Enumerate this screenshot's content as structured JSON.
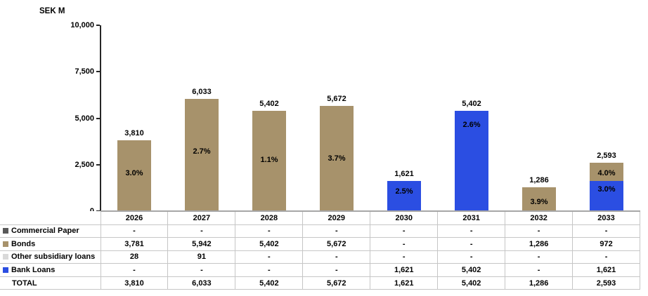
{
  "chart": {
    "y_axis_title": "SEK M",
    "ylim": [
      0,
      10000
    ],
    "y_ticks": [
      {
        "label": "10,000",
        "value": 10000
      },
      {
        "label": "7,500",
        "value": 7500
      },
      {
        "label": "5,000",
        "value": 5000
      },
      {
        "label": "2,500",
        "value": 2500
      },
      {
        "label": "0",
        "value": 0
      }
    ]
  },
  "colors": {
    "commercial_paper": "#595959",
    "bonds": "#A7926B",
    "other_subsidiary_loans": "#D9D9D9",
    "bank_loans": "#2B4EE2",
    "axis": "#262626",
    "table_border": "#C6C6C6",
    "baseline": "#A6A6A6"
  },
  "chart_data": {
    "type": "bar",
    "stacked": true,
    "title": "",
    "xlabel": "",
    "ylabel": "SEK M",
    "ylim": [
      0,
      10000
    ],
    "grid": false,
    "legend_position": "table-left",
    "categories": [
      "2026",
      "2027",
      "2028",
      "2029",
      "2030",
      "2031",
      "2032",
      "2033"
    ],
    "series": [
      {
        "name": "Commercial Paper",
        "color": "#595959",
        "values": [
          0,
          0,
          0,
          0,
          0,
          0,
          0,
          0
        ],
        "display": [
          "-",
          "-",
          "-",
          "-",
          "-",
          "-",
          "-",
          "-"
        ]
      },
      {
        "name": "Bonds",
        "color": "#A7926B",
        "values": [
          3781,
          5942,
          5402,
          5672,
          0,
          0,
          1286,
          972
        ],
        "display": [
          "3,781",
          "5,942",
          "5,402",
          "5,672",
          "-",
          "-",
          "1,286",
          "972"
        ]
      },
      {
        "name": "Other subsidiary loans",
        "color": "#D9D9D9",
        "values": [
          28,
          91,
          0,
          0,
          0,
          0,
          0,
          0
        ],
        "display": [
          "28",
          "91",
          "-",
          "-",
          "-",
          "-",
          "-",
          "-"
        ]
      },
      {
        "name": "Bank Loans",
        "color": "#2B4EE2",
        "values": [
          0,
          0,
          0,
          0,
          1621,
          5402,
          0,
          1621
        ],
        "display": [
          "-",
          "-",
          "-",
          "-",
          "1,621",
          "5,402",
          "-",
          "1,621"
        ]
      }
    ],
    "total_row": {
      "name": "TOTAL",
      "values": [
        3810,
        6033,
        5402,
        5672,
        1621,
        5402,
        1286,
        2593
      ],
      "display": [
        "3,810",
        "6,033",
        "5,402",
        "5,672",
        "1,621",
        "5,402",
        "1,286",
        "2,593"
      ]
    },
    "bars": [
      {
        "category": "2026",
        "total": 3810,
        "total_label": "3,810",
        "segments": [
          {
            "color": "#A7926B",
            "value": 3810,
            "pct": "3.0%",
            "pct_frac": 0.47
          }
        ]
      },
      {
        "category": "2027",
        "total": 6033,
        "total_label": "6,033",
        "segments": [
          {
            "color": "#A7926B",
            "value": 6033,
            "pct": "2.7%",
            "pct_frac": 0.47
          }
        ]
      },
      {
        "category": "2028",
        "total": 5402,
        "total_label": "5,402",
        "segments": [
          {
            "color": "#A7926B",
            "value": 5402,
            "pct": "1.1%",
            "pct_frac": 0.49
          }
        ]
      },
      {
        "category": "2029",
        "total": 5672,
        "total_label": "5,672",
        "segments": [
          {
            "color": "#A7926B",
            "value": 5672,
            "pct": "3.7%",
            "pct_frac": 0.5
          }
        ]
      },
      {
        "category": "2030",
        "total": 1621,
        "total_label": "1,621",
        "segments": [
          {
            "color": "#2B4EE2",
            "value": 1621,
            "pct": "2.5%",
            "pct_frac": 0.35
          }
        ]
      },
      {
        "category": "2031",
        "total": 5402,
        "total_label": "5,402",
        "segments": [
          {
            "color": "#2B4EE2",
            "value": 5402,
            "pct": "2.6%",
            "pct_frac": 0.14
          }
        ]
      },
      {
        "category": "2032",
        "total": 1286,
        "total_label": "1,286",
        "segments": [
          {
            "color": "#A7926B",
            "value": 1286,
            "pct": "3.9%",
            "pct_frac": 0.62
          }
        ]
      },
      {
        "category": "2033",
        "total": 2593,
        "total_label": "2,593",
        "segments": [
          {
            "color": "#2B4EE2",
            "value": 1621,
            "pct": "3.0%",
            "pct_frac": 0.27
          },
          {
            "color": "#A7926B",
            "value": 972,
            "pct": "4.0%",
            "pct_frac": 0.57
          }
        ]
      }
    ]
  }
}
